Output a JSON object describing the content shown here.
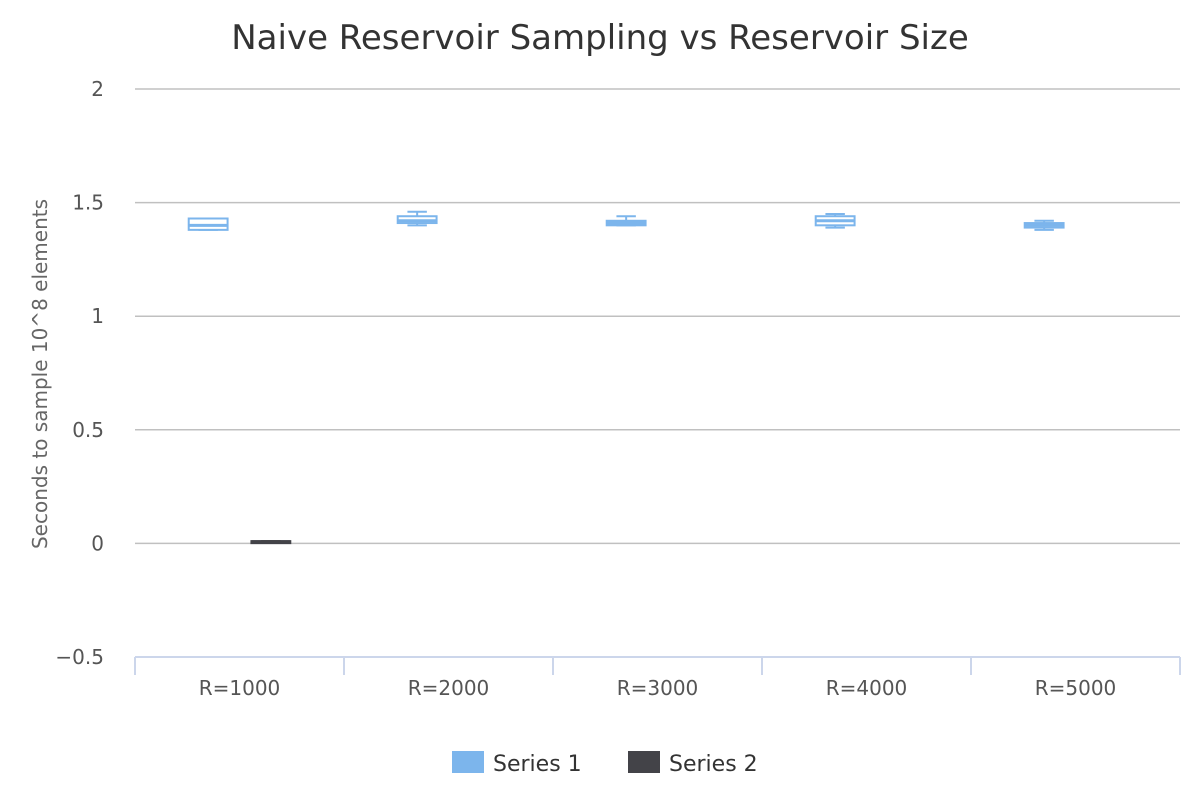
{
  "chart_data": {
    "type": "boxplot",
    "title": "Naive Reservoir Sampling vs Reservoir Size",
    "xlabel": "",
    "ylabel": "Seconds to sample 10^8 elements",
    "ylim": [
      -0.5,
      2
    ],
    "yticks": [
      2,
      1.5,
      1,
      0.5,
      0,
      -0.5
    ],
    "ytick_labels": [
      "2",
      "1.5",
      "1",
      "0.5",
      "0",
      "−0.5"
    ],
    "categories": [
      "R=1000",
      "R=2000",
      "R=3000",
      "R=4000",
      "R=5000"
    ],
    "grid": true,
    "legend_position": "bottom-center",
    "series": [
      {
        "name": "Series 1",
        "color": "#7cb5ec",
        "boxes": [
          {
            "category": "R=1000",
            "low": 1.38,
            "q1": 1.38,
            "median": 1.4,
            "q3": 1.43,
            "high": 1.43
          },
          {
            "category": "R=2000",
            "low": 1.4,
            "q1": 1.41,
            "median": 1.42,
            "q3": 1.44,
            "high": 1.46
          },
          {
            "category": "R=3000",
            "low": 1.4,
            "q1": 1.4,
            "median": 1.41,
            "q3": 1.42,
            "high": 1.44
          },
          {
            "category": "R=4000",
            "low": 1.39,
            "q1": 1.4,
            "median": 1.42,
            "q3": 1.44,
            "high": 1.45
          },
          {
            "category": "R=5000",
            "low": 1.38,
            "q1": 1.39,
            "median": 1.4,
            "q3": 1.41,
            "high": 1.42
          }
        ]
      },
      {
        "name": "Series 2",
        "color": "#434348",
        "boxes": [
          {
            "category": "R=1000",
            "low": 0.005,
            "q1": 0.005,
            "median": 0.007,
            "q3": 0.01,
            "high": 0.01
          }
        ]
      }
    ]
  }
}
